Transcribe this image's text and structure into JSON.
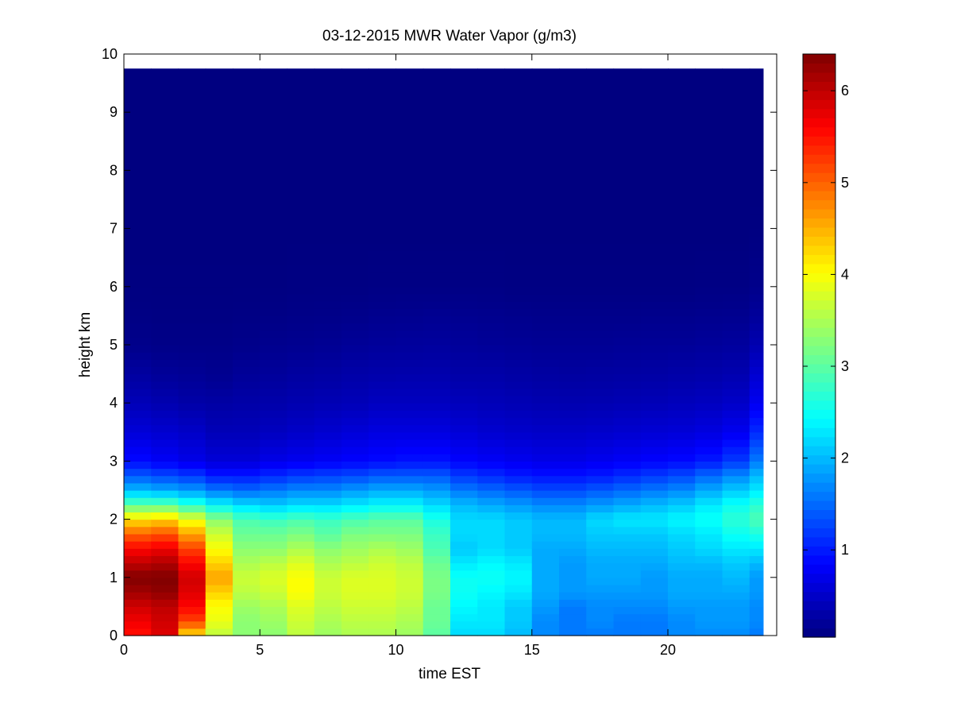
{
  "chart_data": {
    "type": "heatmap",
    "title": "03-12-2015 MWR Water Vapor (g/m3)",
    "xlabel": "time EST",
    "ylabel": "height km",
    "xlim": [
      0,
      24
    ],
    "ylim": [
      0,
      10
    ],
    "x_ticks": [
      0,
      5,
      10,
      15,
      20
    ],
    "y_ticks": [
      0,
      1,
      2,
      3,
      4,
      5,
      6,
      7,
      8,
      9,
      10
    ],
    "colorbar": {
      "colormap": "jet",
      "range": [
        0.05,
        6.4
      ],
      "ticks": [
        1,
        2,
        3,
        4,
        5,
        6
      ]
    },
    "grid": false,
    "data_extent": {
      "time_range": [
        0,
        23.5
      ],
      "height_top": 9.75
    },
    "heights": [
      0,
      0.25,
      0.5,
      0.75,
      1.0,
      1.25,
      1.5,
      1.75,
      2.0,
      2.25,
      2.5,
      2.75,
      3.0,
      3.5,
      4.0,
      4.5,
      5.0,
      5.5,
      6.0,
      7.0,
      8.0,
      9.0,
      9.75
    ],
    "times": [
      0,
      1,
      2,
      3,
      4,
      5,
      6,
      7,
      8,
      9,
      10,
      11,
      12,
      13,
      14,
      15,
      16,
      17,
      18,
      19,
      20,
      21,
      22,
      23
    ],
    "profiles": [
      [
        5.5,
        5.7,
        5.9,
        6.2,
        6.4,
        6.0,
        5.6,
        5.0,
        4.2,
        3.0,
        2.0,
        1.4,
        0.9,
        0.6,
        0.4,
        0.25,
        0.12,
        0.08,
        0.06,
        0.05,
        0.05,
        0.05,
        0.05
      ],
      [
        5.8,
        5.9,
        6.0,
        6.3,
        6.4,
        6.1,
        5.7,
        5.1,
        4.3,
        3.0,
        1.9,
        1.3,
        0.8,
        0.55,
        0.35,
        0.2,
        0.1,
        0.07,
        0.06,
        0.05,
        0.05,
        0.05,
        0.05
      ],
      [
        4.2,
        5.2,
        5.6,
        5.8,
        5.9,
        5.6,
        5.2,
        4.6,
        3.9,
        2.7,
        1.8,
        1.2,
        0.7,
        0.5,
        0.3,
        0.18,
        0.1,
        0.07,
        0.06,
        0.05,
        0.05,
        0.05,
        0.05
      ],
      [
        3.6,
        3.9,
        4.0,
        4.3,
        4.6,
        4.3,
        4.0,
        3.7,
        3.3,
        2.4,
        1.6,
        1.0,
        0.6,
        0.4,
        0.28,
        0.15,
        0.1,
        0.07,
        0.06,
        0.05,
        0.05,
        0.05,
        0.05
      ],
      [
        3.3,
        3.3,
        3.4,
        3.6,
        3.7,
        3.5,
        3.3,
        3.1,
        2.9,
        2.2,
        1.5,
        1.0,
        0.6,
        0.4,
        0.3,
        0.2,
        0.12,
        0.08,
        0.06,
        0.05,
        0.05,
        0.05,
        0.05
      ],
      [
        3.3,
        3.4,
        3.5,
        3.7,
        3.8,
        3.6,
        3.3,
        3.1,
        2.8,
        2.1,
        1.6,
        1.1,
        0.7,
        0.45,
        0.32,
        0.22,
        0.14,
        0.09,
        0.06,
        0.05,
        0.05,
        0.05,
        0.05
      ],
      [
        3.6,
        3.7,
        3.8,
        4.0,
        4.0,
        3.8,
        3.5,
        3.2,
        2.9,
        2.2,
        1.7,
        1.2,
        0.75,
        0.5,
        0.35,
        0.25,
        0.15,
        0.1,
        0.07,
        0.05,
        0.05,
        0.05,
        0.05
      ],
      [
        3.4,
        3.5,
        3.6,
        3.7,
        3.7,
        3.5,
        3.3,
        3.0,
        2.8,
        2.2,
        1.7,
        1.25,
        0.8,
        0.55,
        0.38,
        0.27,
        0.17,
        0.11,
        0.07,
        0.05,
        0.05,
        0.05,
        0.05
      ],
      [
        3.5,
        3.6,
        3.7,
        3.8,
        3.8,
        3.6,
        3.4,
        3.2,
        2.9,
        2.3,
        1.8,
        1.3,
        0.85,
        0.6,
        0.4,
        0.3,
        0.2,
        0.12,
        0.07,
        0.05,
        0.05,
        0.05,
        0.05
      ],
      [
        3.5,
        3.6,
        3.7,
        3.8,
        3.8,
        3.7,
        3.5,
        3.2,
        3.0,
        2.4,
        1.9,
        1.4,
        0.9,
        0.65,
        0.45,
        0.32,
        0.22,
        0.14,
        0.08,
        0.05,
        0.05,
        0.05,
        0.05
      ],
      [
        3.4,
        3.5,
        3.6,
        3.7,
        3.7,
        3.6,
        3.4,
        3.2,
        3.0,
        2.4,
        1.9,
        1.4,
        0.95,
        0.65,
        0.45,
        0.33,
        0.23,
        0.15,
        0.08,
        0.05,
        0.05,
        0.05,
        0.05
      ],
      [
        3.0,
        3.1,
        3.1,
        3.2,
        3.2,
        3.1,
        2.9,
        2.8,
        2.6,
        2.2,
        1.8,
        1.4,
        0.95,
        0.65,
        0.45,
        0.33,
        0.24,
        0.16,
        0.08,
        0.05,
        0.05,
        0.05,
        0.05
      ],
      [
        2.2,
        2.3,
        2.4,
        2.5,
        2.5,
        2.3,
        2.1,
        2.2,
        2.2,
        2.0,
        1.6,
        1.2,
        0.85,
        0.6,
        0.42,
        0.3,
        0.22,
        0.15,
        0.08,
        0.05,
        0.05,
        0.05,
        0.05
      ],
      [
        2.2,
        2.3,
        2.3,
        2.4,
        2.5,
        2.4,
        2.2,
        2.2,
        2.2,
        1.9,
        1.5,
        1.1,
        0.8,
        0.55,
        0.4,
        0.3,
        0.2,
        0.14,
        0.08,
        0.05,
        0.05,
        0.05,
        0.05
      ],
      [
        2.0,
        2.1,
        2.1,
        2.3,
        2.4,
        2.3,
        2.1,
        2.1,
        2.1,
        1.8,
        1.4,
        1.0,
        0.75,
        0.52,
        0.38,
        0.28,
        0.19,
        0.13,
        0.07,
        0.05,
        0.05,
        0.05,
        0.05
      ],
      [
        1.7,
        1.7,
        1.8,
        1.9,
        1.9,
        1.9,
        1.9,
        2.0,
        2.0,
        1.7,
        1.3,
        0.95,
        0.7,
        0.5,
        0.36,
        0.26,
        0.18,
        0.12,
        0.07,
        0.05,
        0.05,
        0.05,
        0.05
      ],
      [
        1.6,
        1.6,
        1.6,
        1.8,
        1.8,
        1.8,
        1.9,
        2.0,
        2.0,
        1.7,
        1.3,
        0.95,
        0.7,
        0.5,
        0.35,
        0.25,
        0.18,
        0.12,
        0.07,
        0.05,
        0.05,
        0.05,
        0.05
      ],
      [
        1.6,
        1.7,
        1.7,
        1.8,
        1.9,
        1.9,
        2.0,
        2.1,
        2.2,
        1.8,
        1.4,
        1.0,
        0.75,
        0.52,
        0.36,
        0.26,
        0.18,
        0.12,
        0.07,
        0.05,
        0.05,
        0.05,
        0.05
      ],
      [
        1.6,
        1.6,
        1.7,
        1.8,
        1.9,
        1.9,
        2.0,
        2.1,
        2.3,
        1.9,
        1.5,
        1.1,
        0.8,
        0.55,
        0.38,
        0.27,
        0.19,
        0.12,
        0.07,
        0.05,
        0.05,
        0.05,
        0.05
      ],
      [
        1.6,
        1.6,
        1.7,
        1.8,
        1.8,
        1.9,
        2.0,
        2.1,
        2.3,
        2.0,
        1.6,
        1.2,
        0.85,
        0.58,
        0.4,
        0.28,
        0.2,
        0.13,
        0.07,
        0.05,
        0.05,
        0.05,
        0.05
      ],
      [
        1.7,
        1.7,
        1.8,
        1.9,
        1.9,
        2.0,
        2.1,
        2.2,
        2.4,
        2.1,
        1.7,
        1.3,
        0.9,
        0.6,
        0.42,
        0.3,
        0.2,
        0.13,
        0.07,
        0.05,
        0.05,
        0.05,
        0.05
      ],
      [
        1.7,
        1.8,
        1.8,
        1.9,
        1.9,
        2.0,
        2.2,
        2.3,
        2.5,
        2.3,
        1.9,
        1.5,
        1.0,
        0.65,
        0.45,
        0.32,
        0.22,
        0.14,
        0.08,
        0.05,
        0.05,
        0.05,
        0.05
      ],
      [
        1.7,
        1.8,
        1.8,
        1.9,
        2.0,
        2.1,
        2.3,
        2.5,
        2.7,
        2.5,
        2.1,
        1.7,
        1.2,
        0.75,
        0.5,
        0.35,
        0.24,
        0.15,
        0.08,
        0.05,
        0.05,
        0.05,
        0.05
      ],
      [
        1.6,
        1.7,
        1.7,
        1.8,
        1.8,
        2.0,
        2.3,
        2.6,
        2.9,
        2.7,
        2.3,
        2.0,
        1.6,
        1.1,
        0.75,
        0.55,
        0.35,
        0.22,
        0.12,
        0.06,
        0.05,
        0.05,
        0.05
      ]
    ]
  }
}
